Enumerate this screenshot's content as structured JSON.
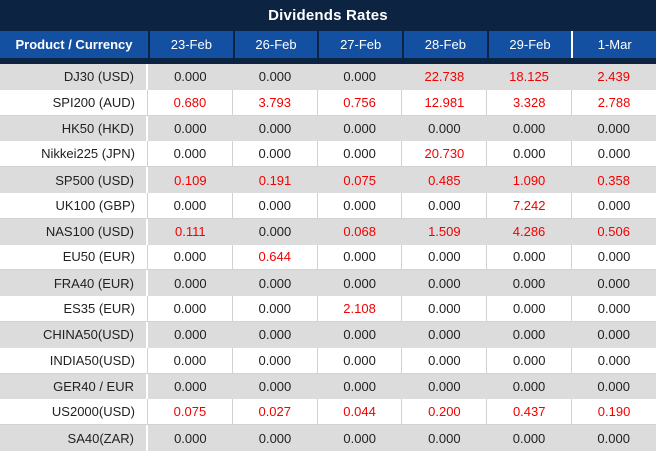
{
  "title": "Dividends Rates",
  "colors": {
    "navy": "#0d2342",
    "header_blue": "#1450a1",
    "row_gray": "#dcdcdc",
    "row_white": "#ffffff",
    "divider_gray": "#d2d2d2",
    "value_black": "#212121",
    "value_red": "#f30000",
    "header_text": "#ffffff"
  },
  "table": {
    "product_header": "Product / Currency",
    "date_headers": [
      "23-Feb",
      "26-Feb",
      "27-Feb",
      "28-Feb",
      "29-Feb",
      "1-Mar"
    ],
    "rows": [
      {
        "product": "DJ30 (USD)",
        "values": [
          "0.000",
          "0.000",
          "0.000",
          "22.738",
          "18.125",
          "2.439"
        ],
        "red": [
          false,
          false,
          false,
          true,
          true,
          true
        ]
      },
      {
        "product": "SPI200 (AUD)",
        "values": [
          "0.680",
          "3.793",
          "0.756",
          "12.981",
          "3.328",
          "2.788"
        ],
        "red": [
          true,
          true,
          true,
          true,
          true,
          true
        ]
      },
      {
        "product": "HK50 (HKD)",
        "values": [
          "0.000",
          "0.000",
          "0.000",
          "0.000",
          "0.000",
          "0.000"
        ],
        "red": [
          false,
          false,
          false,
          false,
          false,
          false
        ]
      },
      {
        "product": "Nikkei225 (JPN)",
        "values": [
          "0.000",
          "0.000",
          "0.000",
          "20.730",
          "0.000",
          "0.000"
        ],
        "red": [
          false,
          false,
          false,
          true,
          false,
          false
        ]
      },
      {
        "product": "SP500 (USD)",
        "values": [
          "0.109",
          "0.191",
          "0.075",
          "0.485",
          "1.090",
          "0.358"
        ],
        "red": [
          true,
          true,
          true,
          true,
          true,
          true
        ]
      },
      {
        "product": "UK100 (GBP)",
        "values": [
          "0.000",
          "0.000",
          "0.000",
          "0.000",
          "7.242",
          "0.000"
        ],
        "red": [
          false,
          false,
          false,
          false,
          true,
          false
        ]
      },
      {
        "product": "NAS100 (USD)",
        "values": [
          "0.111",
          "0.000",
          "0.068",
          "1.509",
          "4.286",
          "0.506"
        ],
        "red": [
          true,
          false,
          true,
          true,
          true,
          true
        ]
      },
      {
        "product": "EU50 (EUR)",
        "values": [
          "0.000",
          "0.644",
          "0.000",
          "0.000",
          "0.000",
          "0.000"
        ],
        "red": [
          false,
          true,
          false,
          false,
          false,
          false
        ]
      },
      {
        "product": "FRA40 (EUR)",
        "values": [
          "0.000",
          "0.000",
          "0.000",
          "0.000",
          "0.000",
          "0.000"
        ],
        "red": [
          false,
          false,
          false,
          false,
          false,
          false
        ]
      },
      {
        "product": "ES35 (EUR)",
        "values": [
          "0.000",
          "0.000",
          "2.108",
          "0.000",
          "0.000",
          "0.000"
        ],
        "red": [
          false,
          false,
          true,
          false,
          false,
          false
        ]
      },
      {
        "product": "CHINA50(USD)",
        "values": [
          "0.000",
          "0.000",
          "0.000",
          "0.000",
          "0.000",
          "0.000"
        ],
        "red": [
          false,
          false,
          false,
          false,
          false,
          false
        ]
      },
      {
        "product": "INDIA50(USD)",
        "values": [
          "0.000",
          "0.000",
          "0.000",
          "0.000",
          "0.000",
          "0.000"
        ],
        "red": [
          false,
          false,
          false,
          false,
          false,
          false
        ]
      },
      {
        "product": "GER40 / EUR",
        "values": [
          "0.000",
          "0.000",
          "0.000",
          "0.000",
          "0.000",
          "0.000"
        ],
        "red": [
          false,
          false,
          false,
          false,
          false,
          false
        ]
      },
      {
        "product": "US2000(USD)",
        "values": [
          "0.075",
          "0.027",
          "0.044",
          "0.200",
          "0.437",
          "0.190"
        ],
        "red": [
          true,
          true,
          true,
          true,
          true,
          true
        ]
      },
      {
        "product": "SA40(ZAR)",
        "values": [
          "0.000",
          "0.000",
          "0.000",
          "0.000",
          "0.000",
          "0.000"
        ],
        "red": [
          false,
          false,
          false,
          false,
          false,
          false
        ]
      }
    ]
  }
}
